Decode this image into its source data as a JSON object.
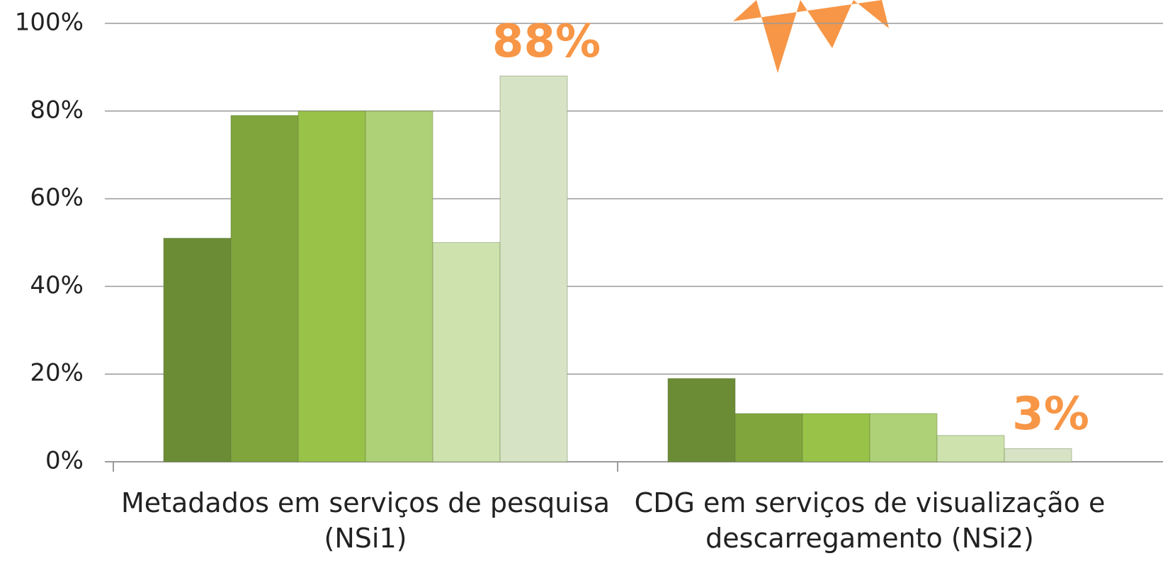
{
  "chart_data": {
    "type": "bar",
    "categories": [
      "Metadados em serviços de pesquisa (NSi1)",
      "CDG em serviços de visualização e descarregamento (NSi2)"
    ],
    "series": [
      {
        "color": "#6b8c35",
        "values": [
          51,
          19
        ]
      },
      {
        "color": "#80a53c",
        "values": [
          79,
          11
        ]
      },
      {
        "color": "#98c248",
        "values": [
          80,
          11
        ]
      },
      {
        "color": "#aed076",
        "values": [
          80,
          11
        ]
      },
      {
        "color": "#cde2ad",
        "values": [
          50,
          6
        ]
      },
      {
        "color": "#d6e3c4",
        "values": [
          88,
          3
        ],
        "value_labels": [
          "88%",
          "3%"
        ]
      }
    ],
    "ylim": [
      0,
      100
    ],
    "yticks": [
      {
        "value": 0,
        "label": "0%"
      },
      {
        "value": 20,
        "label": "20%"
      },
      {
        "value": 40,
        "label": "40%"
      },
      {
        "value": 60,
        "label": "60%"
      },
      {
        "value": 80,
        "label": "80%"
      },
      {
        "value": 100,
        "label": "100%"
      }
    ],
    "grid": true,
    "value_label_color": "#f79646"
  }
}
